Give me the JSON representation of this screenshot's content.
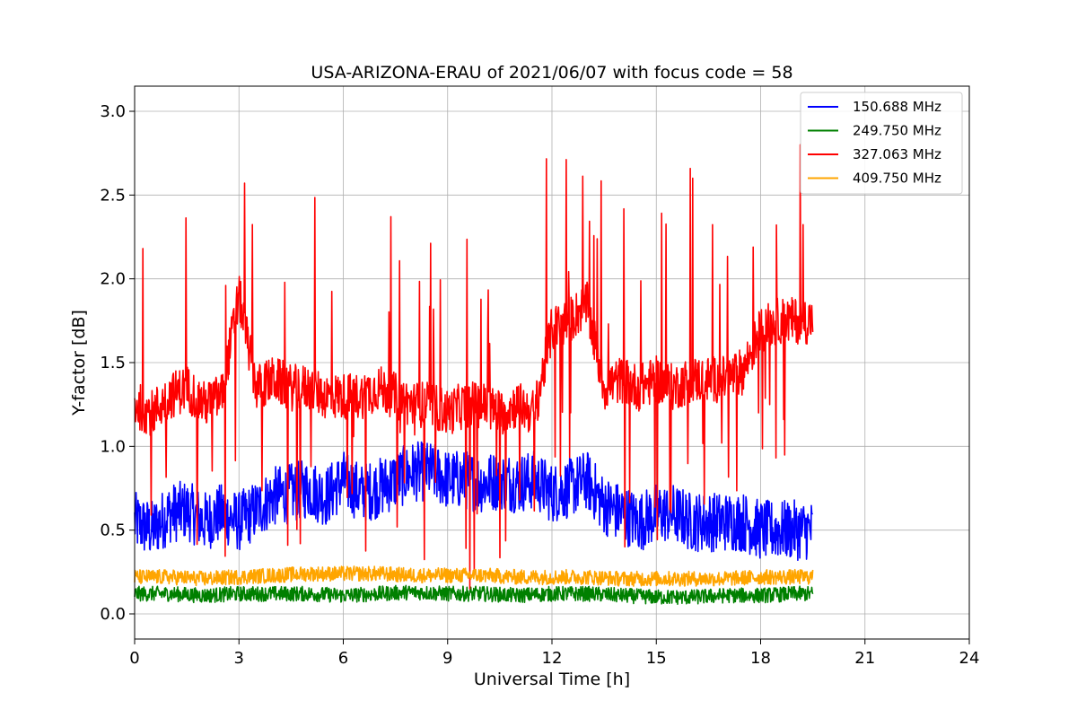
{
  "chart_data": {
    "type": "line",
    "title": "USA-ARIZONA-ERAU of 2021/06/07 with focus code = 58",
    "xlabel": "Universal Time [h]",
    "ylabel": "Y-factor [dB]",
    "xlim": [
      0,
      24
    ],
    "ylim": [
      -0.15,
      3.15
    ],
    "xticks": [
      0,
      3,
      6,
      9,
      12,
      15,
      18,
      21,
      24
    ],
    "yticks": [
      0.0,
      0.5,
      1.0,
      1.5,
      2.0,
      2.5,
      3.0
    ],
    "xtick_labels": [
      "0",
      "3",
      "6",
      "9",
      "12",
      "15",
      "18",
      "21",
      "24"
    ],
    "ytick_labels": [
      "0.0",
      "0.5",
      "1.0",
      "1.5",
      "2.0",
      "2.5",
      "3.0"
    ],
    "grid": true,
    "legend_position": "top-right",
    "series": [
      {
        "name": "150.688 MHz",
        "color": "#0000ff",
        "x": [
          0,
          0.5,
          1,
          1.5,
          2,
          2.5,
          3,
          3.5,
          4,
          4.5,
          5,
          5.5,
          6,
          6.5,
          7,
          7.5,
          8,
          8.5,
          9,
          9.5,
          10,
          10.5,
          11,
          11.5,
          12,
          12.5,
          13,
          13.5,
          14,
          14.5,
          15,
          15.5,
          16,
          16.5,
          17,
          17.5,
          18,
          18.5,
          19,
          19.5
        ],
        "values": [
          0.55,
          0.5,
          0.6,
          0.62,
          0.55,
          0.6,
          0.55,
          0.62,
          0.7,
          0.72,
          0.75,
          0.7,
          0.8,
          0.72,
          0.75,
          0.8,
          0.85,
          0.85,
          0.8,
          0.8,
          0.78,
          0.8,
          0.78,
          0.8,
          0.72,
          0.75,
          0.8,
          0.65,
          0.6,
          0.55,
          0.6,
          0.6,
          0.55,
          0.55,
          0.55,
          0.55,
          0.5,
          0.5,
          0.5,
          0.5
        ]
      },
      {
        "name": "249.750 MHz",
        "color": "#008000",
        "x": [
          0,
          1,
          2,
          3,
          4,
          5,
          6,
          7,
          8,
          9,
          10,
          11,
          12,
          13,
          14,
          15,
          16,
          17,
          18,
          19,
          19.5
        ],
        "values": [
          0.12,
          0.12,
          0.11,
          0.12,
          0.12,
          0.12,
          0.11,
          0.12,
          0.13,
          0.12,
          0.12,
          0.11,
          0.12,
          0.12,
          0.11,
          0.1,
          0.1,
          0.11,
          0.11,
          0.12,
          0.12
        ]
      },
      {
        "name": "327.063 MHz",
        "color": "#ff0000",
        "x": [
          0,
          0.5,
          1,
          1.5,
          2,
          2.5,
          3,
          3.5,
          4,
          4.5,
          5,
          5.5,
          6,
          6.5,
          7,
          7.5,
          8,
          8.5,
          9,
          9.5,
          10,
          10.5,
          11,
          11.5,
          12,
          12.5,
          13,
          13.5,
          14,
          14.5,
          15,
          15.5,
          16,
          16.5,
          17,
          17.5,
          18,
          18.5,
          19,
          19.5
        ],
        "values": [
          1.25,
          1.2,
          1.3,
          1.35,
          1.25,
          1.3,
          1.9,
          1.35,
          1.4,
          1.35,
          1.35,
          1.3,
          1.3,
          1.3,
          1.35,
          1.3,
          1.25,
          1.25,
          1.2,
          1.25,
          1.25,
          1.2,
          1.25,
          1.2,
          1.7,
          1.75,
          1.85,
          1.35,
          1.4,
          1.35,
          1.4,
          1.35,
          1.4,
          1.4,
          1.4,
          1.45,
          1.7,
          1.75,
          1.75,
          1.75
        ]
      },
      {
        "name": "409.750 MHz",
        "color": "#ffa500",
        "x": [
          0,
          1,
          2,
          3,
          4,
          5,
          6,
          7,
          8,
          9,
          10,
          11,
          12,
          13,
          14,
          15,
          16,
          17,
          18,
          19,
          19.5
        ],
        "values": [
          0.22,
          0.22,
          0.21,
          0.22,
          0.23,
          0.24,
          0.24,
          0.24,
          0.23,
          0.23,
          0.23,
          0.22,
          0.22,
          0.22,
          0.21,
          0.21,
          0.21,
          0.21,
          0.22,
          0.22,
          0.22
        ]
      }
    ]
  }
}
